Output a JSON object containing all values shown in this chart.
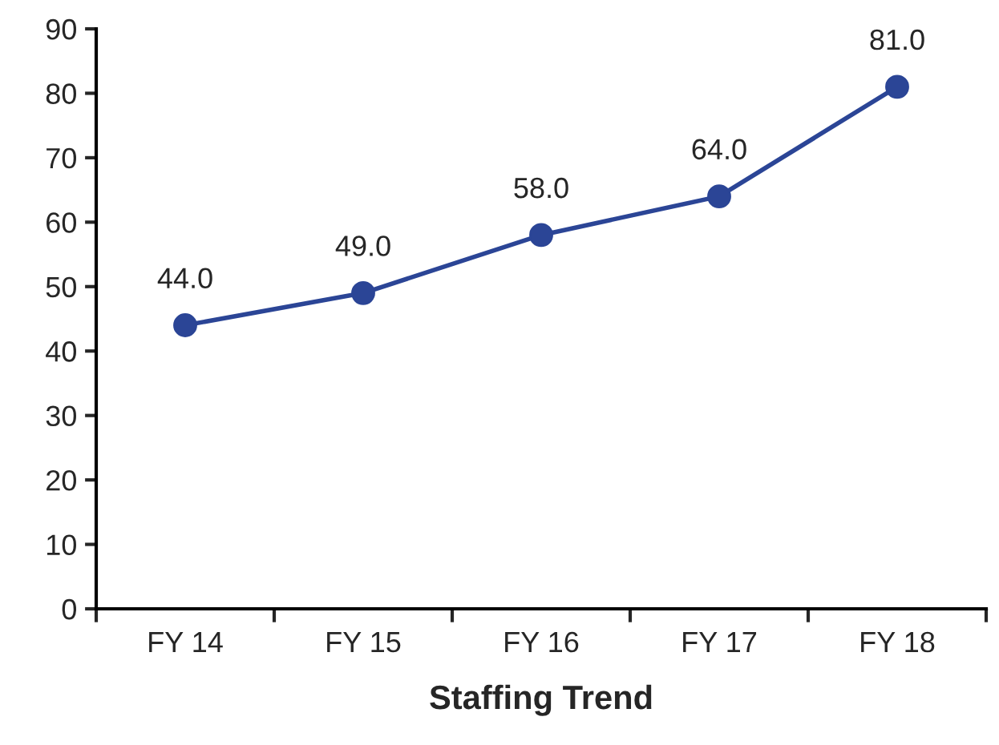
{
  "chart_data": {
    "type": "line",
    "xlabel": "Staffing Trend",
    "categories": [
      "FY 14",
      "FY 15",
      "FY 16",
      "FY 17",
      "FY 18"
    ],
    "series": [
      {
        "color": "#2b4596",
        "values": [
          44,
          49,
          58,
          64,
          81
        ],
        "value_labels": [
          "44.0",
          "49.0",
          "58.0",
          "64.0",
          "81.0"
        ]
      }
    ],
    "ylim": [
      0,
      90
    ],
    "yticks": [
      0,
      10,
      20,
      30,
      40,
      50,
      60,
      70,
      80,
      90
    ],
    "marker": "circle",
    "line_style": "solid",
    "grid": false
  }
}
